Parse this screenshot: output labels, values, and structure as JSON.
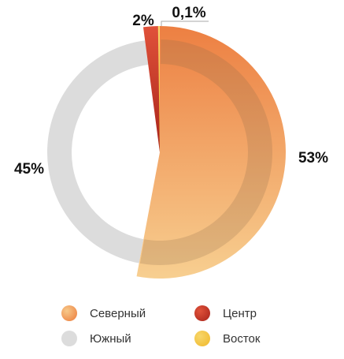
{
  "chart_data": {
    "type": "pie",
    "categories": [
      "Северный",
      "Южный",
      "Центр",
      "Восток"
    ],
    "values": [
      53,
      45,
      2,
      0.1
    ],
    "value_labels": [
      "53%",
      "45%",
      "2%",
      "0,1%"
    ],
    "legend_position": "bottom",
    "colors": {
      "Северный": [
        "#ec7a3a",
        "#f7c98a"
      ],
      "Южный": [
        "#dcdcdc",
        "#dcdcdc"
      ],
      "Центр": [
        "#b52a1f",
        "#e0523a"
      ],
      "Восток": [
        "#f2c23a",
        "#f7d66a"
      ]
    }
  },
  "legend": [
    {
      "label": "Северный",
      "color": "#f0a060"
    },
    {
      "label": "Центр",
      "color": "#c8341f"
    },
    {
      "label": "Южный",
      "color": "#dcdcdc"
    },
    {
      "label": "Восток",
      "color": "#f2c23a"
    }
  ]
}
